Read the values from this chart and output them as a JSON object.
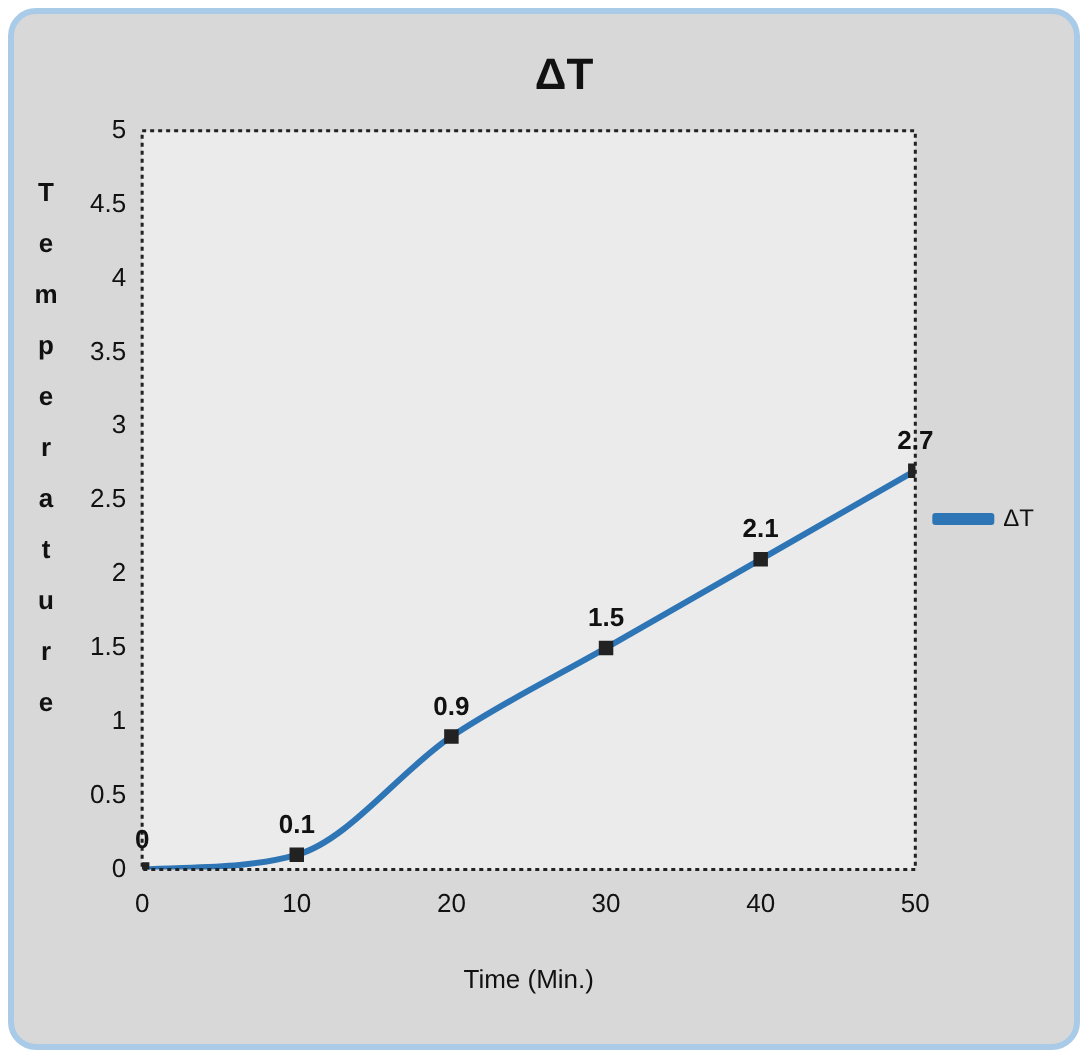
{
  "chart_data": {
    "type": "line",
    "title": "ΔT",
    "xlabel": "Time (Min.)",
    "ylabel": "Temperature",
    "x": [
      0,
      10,
      20,
      30,
      40,
      50
    ],
    "series": [
      {
        "name": "ΔT",
        "color": "#2e75b6",
        "values": [
          0,
          0.1,
          0.9,
          1.5,
          2.1,
          2.7
        ]
      }
    ],
    "xlim": [
      0,
      50
    ],
    "xticks": [
      0,
      10,
      20,
      30,
      40,
      50
    ],
    "ylim": [
      0,
      5
    ],
    "yticks": [
      0,
      0.5,
      1,
      1.5,
      2,
      2.5,
      3,
      3.5,
      4,
      4.5,
      5
    ],
    "data_labels": true,
    "grid": false,
    "legend": "right",
    "marker": "square",
    "line_style": "solid"
  }
}
